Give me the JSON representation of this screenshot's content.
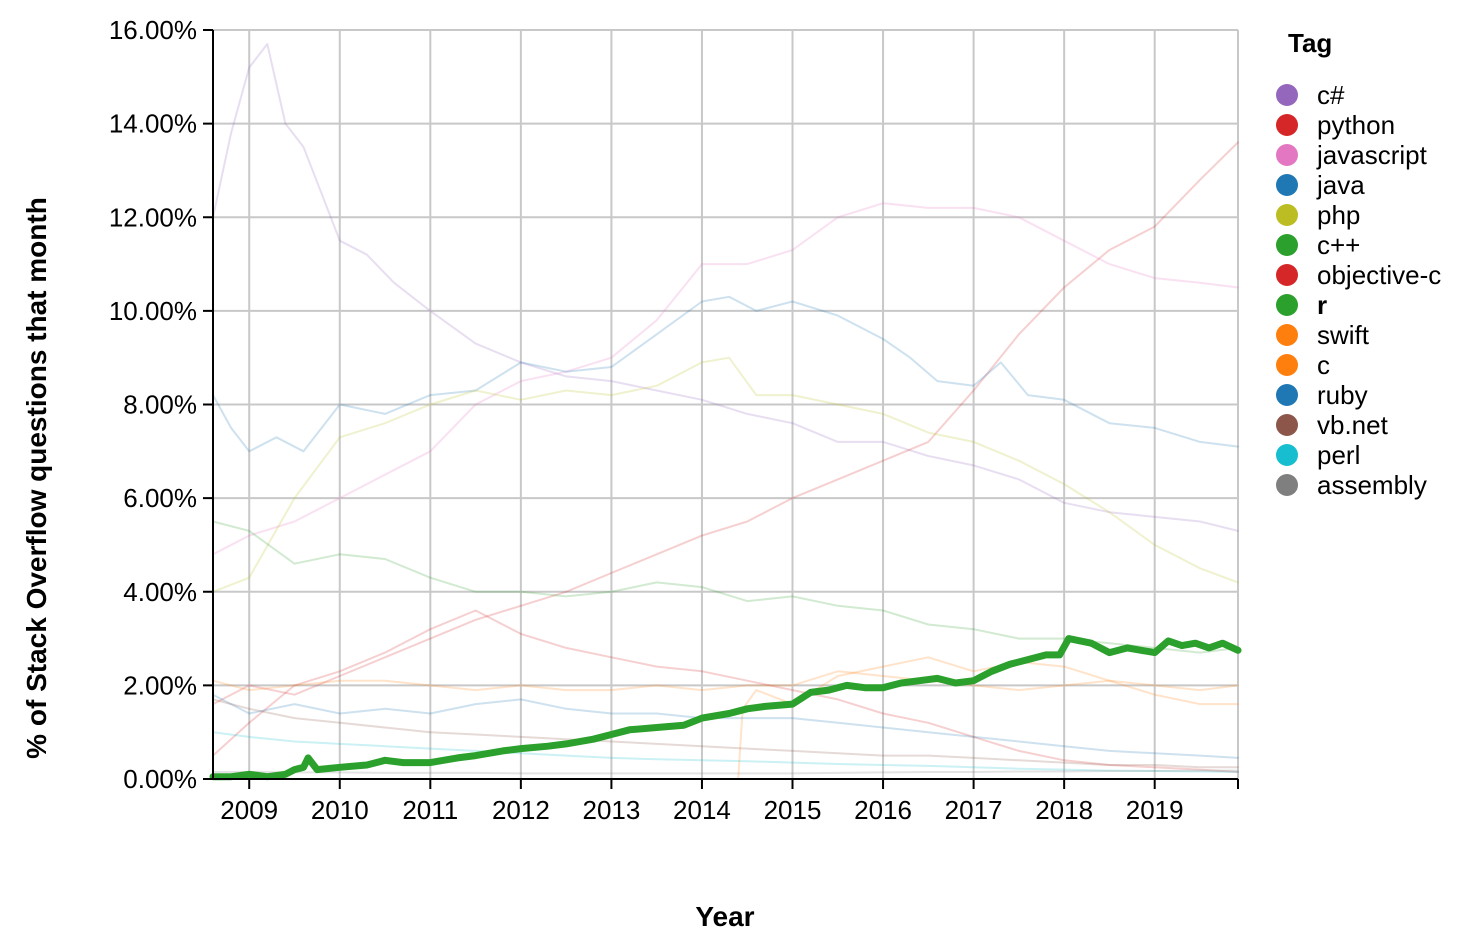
{
  "chart_data": {
    "type": "line",
    "title": "",
    "xlabel": "Year",
    "ylabel": "% of Stack Overflow questions that month",
    "x_range": [
      2008.6,
      2019.92
    ],
    "ylim": [
      0,
      16
    ],
    "grid": true,
    "legend_placement": "right",
    "legend_title": "Tag",
    "highlighted_series": "r",
    "x_ticks": [
      {
        "value": 2009,
        "label": "2009"
      },
      {
        "value": 2010,
        "label": "2010"
      },
      {
        "value": 2011,
        "label": "2011"
      },
      {
        "value": 2012,
        "label": "2012"
      },
      {
        "value": 2013,
        "label": "2013"
      },
      {
        "value": 2014,
        "label": "2014"
      },
      {
        "value": 2015,
        "label": "2015"
      },
      {
        "value": 2016,
        "label": "2016"
      },
      {
        "value": 2017,
        "label": "2017"
      },
      {
        "value": 2018,
        "label": "2018"
      },
      {
        "value": 2019,
        "label": "2019"
      }
    ],
    "y_ticks": [
      {
        "value": 0,
        "label": "0.00%"
      },
      {
        "value": 2,
        "label": "2.00%"
      },
      {
        "value": 4,
        "label": "4.00%"
      },
      {
        "value": 6,
        "label": "6.00%"
      },
      {
        "value": 8,
        "label": "8.00%"
      },
      {
        "value": 10,
        "label": "10.00%"
      },
      {
        "value": 12,
        "label": "12.00%"
      },
      {
        "value": 14,
        "label": "14.00%"
      },
      {
        "value": 16,
        "label": "16.00%"
      }
    ],
    "series": [
      {
        "name": "c#",
        "color": "#9467bd",
        "x": [
          2008.6,
          2008.8,
          2009.0,
          2009.2,
          2009.4,
          2009.6,
          2009.8,
          2010.0,
          2010.3,
          2010.6,
          2011.0,
          2011.5,
          2012.0,
          2012.5,
          2013.0,
          2013.5,
          2014.0,
          2014.5,
          2015.0,
          2015.5,
          2016.0,
          2016.5,
          2017.0,
          2017.5,
          2018.0,
          2018.5,
          2019.0,
          2019.5,
          2019.92
        ],
        "values": [
          12.0,
          13.8,
          15.2,
          15.7,
          14.0,
          13.5,
          12.5,
          11.5,
          11.2,
          10.6,
          10.0,
          9.3,
          8.9,
          8.6,
          8.5,
          8.3,
          8.1,
          7.8,
          7.6,
          7.2,
          7.2,
          6.9,
          6.7,
          6.4,
          5.9,
          5.7,
          5.6,
          5.5,
          5.3
        ]
      },
      {
        "name": "python",
        "color": "#d62728",
        "x": [
          2008.6,
          2009.0,
          2009.5,
          2010.0,
          2010.5,
          2011.0,
          2011.5,
          2012.0,
          2012.5,
          2013.0,
          2013.5,
          2014.0,
          2014.5,
          2015.0,
          2015.5,
          2016.0,
          2016.5,
          2017.0,
          2017.5,
          2018.0,
          2018.5,
          2019.0,
          2019.5,
          2019.92
        ],
        "values": [
          1.6,
          2.0,
          1.8,
          2.2,
          2.6,
          3.0,
          3.4,
          3.7,
          4.0,
          4.4,
          4.8,
          5.2,
          5.5,
          6.0,
          6.4,
          6.8,
          7.2,
          8.3,
          9.5,
          10.5,
          11.3,
          11.8,
          12.8,
          13.6
        ]
      },
      {
        "name": "javascript",
        "color": "#e377c2",
        "x": [
          2008.6,
          2009.0,
          2009.5,
          2010.0,
          2010.5,
          2011.0,
          2011.5,
          2012.0,
          2012.5,
          2013.0,
          2013.5,
          2014.0,
          2014.5,
          2015.0,
          2015.5,
          2016.0,
          2016.5,
          2017.0,
          2017.5,
          2018.0,
          2018.5,
          2019.0,
          2019.5,
          2019.92
        ],
        "values": [
          4.8,
          5.2,
          5.5,
          6.0,
          6.5,
          7.0,
          8.0,
          8.5,
          8.7,
          9.0,
          9.8,
          11.0,
          11.0,
          11.3,
          12.0,
          12.3,
          12.2,
          12.2,
          12.0,
          11.5,
          11.0,
          10.7,
          10.6,
          10.5
        ]
      },
      {
        "name": "java",
        "color": "#1f77b4",
        "x": [
          2008.6,
          2008.8,
          2009.0,
          2009.3,
          2009.6,
          2010.0,
          2010.5,
          2011.0,
          2011.5,
          2012.0,
          2012.5,
          2013.0,
          2013.5,
          2014.0,
          2014.3,
          2014.6,
          2015.0,
          2015.5,
          2016.0,
          2016.3,
          2016.6,
          2017.0,
          2017.3,
          2017.6,
          2018.0,
          2018.5,
          2019.0,
          2019.5,
          2019.92
        ],
        "values": [
          8.2,
          7.5,
          7.0,
          7.3,
          7.0,
          8.0,
          7.8,
          8.2,
          8.3,
          8.9,
          8.7,
          8.8,
          9.5,
          10.2,
          10.3,
          10.0,
          10.2,
          9.9,
          9.4,
          9.0,
          8.5,
          8.4,
          8.9,
          8.2,
          8.1,
          7.6,
          7.5,
          7.2,
          7.1
        ]
      },
      {
        "name": "php",
        "color": "#bcbd22",
        "x": [
          2008.6,
          2009.0,
          2009.5,
          2010.0,
          2010.5,
          2011.0,
          2011.5,
          2012.0,
          2012.5,
          2013.0,
          2013.5,
          2014.0,
          2014.3,
          2014.6,
          2015.0,
          2015.5,
          2016.0,
          2016.5,
          2017.0,
          2017.5,
          2018.0,
          2018.5,
          2019.0,
          2019.5,
          2019.92
        ],
        "values": [
          4.0,
          4.3,
          6.0,
          7.3,
          7.6,
          8.0,
          8.3,
          8.1,
          8.3,
          8.2,
          8.4,
          8.9,
          9.0,
          8.2,
          8.2,
          8.0,
          7.8,
          7.4,
          7.2,
          6.8,
          6.3,
          5.7,
          5.0,
          4.5,
          4.2
        ]
      },
      {
        "name": "c++",
        "color": "#2ca02c",
        "x": [
          2008.6,
          2009.0,
          2009.5,
          2010.0,
          2010.5,
          2011.0,
          2011.5,
          2012.0,
          2012.5,
          2013.0,
          2013.5,
          2014.0,
          2014.5,
          2015.0,
          2015.5,
          2016.0,
          2016.5,
          2017.0,
          2017.5,
          2018.0,
          2018.5,
          2019.0,
          2019.5,
          2019.92
        ],
        "values": [
          5.5,
          5.3,
          4.6,
          4.8,
          4.7,
          4.3,
          4.0,
          4.0,
          3.9,
          4.0,
          4.2,
          4.1,
          3.8,
          3.9,
          3.7,
          3.6,
          3.3,
          3.2,
          3.0,
          3.0,
          2.9,
          2.8,
          2.7,
          2.8
        ]
      },
      {
        "name": "objective-c",
        "color": "#d62728",
        "x": [
          2008.6,
          2009.0,
          2009.5,
          2010.0,
          2010.5,
          2011.0,
          2011.5,
          2012.0,
          2012.5,
          2013.0,
          2013.5,
          2014.0,
          2014.5,
          2015.0,
          2015.5,
          2016.0,
          2016.5,
          2017.0,
          2017.5,
          2018.0,
          2018.5,
          2019.0,
          2019.5,
          2019.92
        ],
        "values": [
          0.5,
          1.2,
          2.0,
          2.3,
          2.7,
          3.2,
          3.6,
          3.1,
          2.8,
          2.6,
          2.4,
          2.3,
          2.1,
          1.9,
          1.7,
          1.4,
          1.2,
          0.9,
          0.6,
          0.4,
          0.3,
          0.25,
          0.2,
          0.15
        ]
      },
      {
        "name": "r",
        "color": "#2ca02c",
        "x": [
          2008.6,
          2008.8,
          2009.0,
          2009.2,
          2009.4,
          2009.5,
          2009.6,
          2009.65,
          2009.75,
          2010.0,
          2010.3,
          2010.5,
          2010.7,
          2011.0,
          2011.3,
          2011.5,
          2011.8,
          2012.0,
          2012.3,
          2012.5,
          2012.8,
          2013.0,
          2013.2,
          2013.5,
          2013.8,
          2014.0,
          2014.3,
          2014.5,
          2014.7,
          2015.0,
          2015.2,
          2015.4,
          2015.6,
          2015.8,
          2016.0,
          2016.2,
          2016.4,
          2016.6,
          2016.8,
          2017.0,
          2017.2,
          2017.4,
          2017.6,
          2017.8,
          2017.95,
          2018.05,
          2018.3,
          2018.5,
          2018.7,
          2018.85,
          2019.0,
          2019.15,
          2019.3,
          2019.45,
          2019.6,
          2019.75,
          2019.92
        ],
        "values": [
          0.05,
          0.05,
          0.1,
          0.05,
          0.1,
          0.2,
          0.25,
          0.45,
          0.2,
          0.25,
          0.3,
          0.4,
          0.35,
          0.35,
          0.45,
          0.5,
          0.6,
          0.65,
          0.7,
          0.75,
          0.85,
          0.95,
          1.05,
          1.1,
          1.15,
          1.3,
          1.4,
          1.5,
          1.55,
          1.6,
          1.85,
          1.9,
          2.0,
          1.95,
          1.95,
          2.05,
          2.1,
          2.15,
          2.05,
          2.1,
          2.3,
          2.45,
          2.55,
          2.65,
          2.65,
          3.0,
          2.9,
          2.7,
          2.8,
          2.75,
          2.7,
          2.95,
          2.85,
          2.9,
          2.8,
          2.9,
          2.75
        ]
      },
      {
        "name": "swift",
        "color": "#ff7f0e",
        "x": [
          2008.6,
          2014.4,
          2014.45,
          2014.6,
          2015.0,
          2015.5,
          2016.0,
          2016.5,
          2017.0,
          2017.5,
          2018.0,
          2018.5,
          2019.0,
          2019.5,
          2019.92
        ],
        "values": [
          0,
          0,
          1.5,
          1.9,
          1.6,
          2.2,
          2.4,
          2.6,
          2.3,
          2.5,
          2.4,
          2.1,
          1.8,
          1.6,
          1.6
        ]
      },
      {
        "name": "c",
        "color": "#ff7f0e",
        "x": [
          2008.6,
          2009.0,
          2009.5,
          2010.0,
          2010.5,
          2011.0,
          2011.5,
          2012.0,
          2012.5,
          2013.0,
          2013.5,
          2014.0,
          2014.5,
          2015.0,
          2015.5,
          2016.0,
          2016.5,
          2017.0,
          2017.5,
          2018.0,
          2018.5,
          2019.0,
          2019.5,
          2019.92
        ],
        "values": [
          2.1,
          1.9,
          2.0,
          2.1,
          2.1,
          2.0,
          1.9,
          2.0,
          1.9,
          1.9,
          2.0,
          1.9,
          2.0,
          2.0,
          2.3,
          2.2,
          2.1,
          2.0,
          1.9,
          2.0,
          2.1,
          2.0,
          1.9,
          2.0
        ]
      },
      {
        "name": "ruby",
        "color": "#1f77b4",
        "x": [
          2008.6,
          2009.0,
          2009.5,
          2010.0,
          2010.5,
          2011.0,
          2011.5,
          2012.0,
          2012.5,
          2013.0,
          2013.5,
          2014.0,
          2014.5,
          2015.0,
          2015.5,
          2016.0,
          2016.5,
          2017.0,
          2017.5,
          2018.0,
          2018.5,
          2019.0,
          2019.5,
          2019.92
        ],
        "values": [
          1.8,
          1.4,
          1.6,
          1.4,
          1.5,
          1.4,
          1.6,
          1.7,
          1.5,
          1.4,
          1.4,
          1.3,
          1.3,
          1.3,
          1.2,
          1.1,
          1.0,
          0.9,
          0.8,
          0.7,
          0.6,
          0.55,
          0.5,
          0.45
        ]
      },
      {
        "name": "vb.net",
        "color": "#8c564b",
        "x": [
          2008.6,
          2009.0,
          2009.5,
          2010.0,
          2010.5,
          2011.0,
          2011.5,
          2012.0,
          2012.5,
          2013.0,
          2013.5,
          2014.0,
          2014.5,
          2015.0,
          2015.5,
          2016.0,
          2016.5,
          2017.0,
          2017.5,
          2018.0,
          2018.5,
          2019.0,
          2019.5,
          2019.92
        ],
        "values": [
          1.7,
          1.5,
          1.3,
          1.2,
          1.1,
          1.0,
          0.95,
          0.9,
          0.85,
          0.8,
          0.75,
          0.7,
          0.65,
          0.6,
          0.55,
          0.5,
          0.5,
          0.45,
          0.4,
          0.35,
          0.3,
          0.3,
          0.25,
          0.25
        ]
      },
      {
        "name": "perl",
        "color": "#17becf",
        "x": [
          2008.6,
          2009.0,
          2009.5,
          2010.0,
          2010.5,
          2011.0,
          2011.5,
          2012.0,
          2012.5,
          2013.0,
          2013.5,
          2014.0,
          2014.5,
          2015.0,
          2015.5,
          2016.0,
          2016.5,
          2017.0,
          2017.5,
          2018.0,
          2018.5,
          2019.0,
          2019.5,
          2019.92
        ],
        "values": [
          1.0,
          0.9,
          0.8,
          0.75,
          0.7,
          0.65,
          0.6,
          0.55,
          0.5,
          0.45,
          0.42,
          0.4,
          0.38,
          0.35,
          0.32,
          0.3,
          0.28,
          0.25,
          0.22,
          0.2,
          0.18,
          0.17,
          0.16,
          0.15
        ]
      },
      {
        "name": "assembly",
        "color": "#7f7f7f",
        "x": [
          2008.6,
          2009.0,
          2009.5,
          2010.0,
          2010.5,
          2011.0,
          2011.5,
          2012.0,
          2012.5,
          2013.0,
          2013.5,
          2014.0,
          2014.5,
          2015.0,
          2015.5,
          2016.0,
          2016.5,
          2017.0,
          2017.5,
          2018.0,
          2018.5,
          2019.0,
          2019.5,
          2019.92
        ],
        "values": [
          0.15,
          0.15,
          0.14,
          0.14,
          0.13,
          0.13,
          0.13,
          0.12,
          0.12,
          0.12,
          0.12,
          0.12,
          0.12,
          0.12,
          0.13,
          0.14,
          0.15,
          0.15,
          0.16,
          0.16,
          0.17,
          0.17,
          0.18,
          0.18
        ]
      }
    ]
  }
}
